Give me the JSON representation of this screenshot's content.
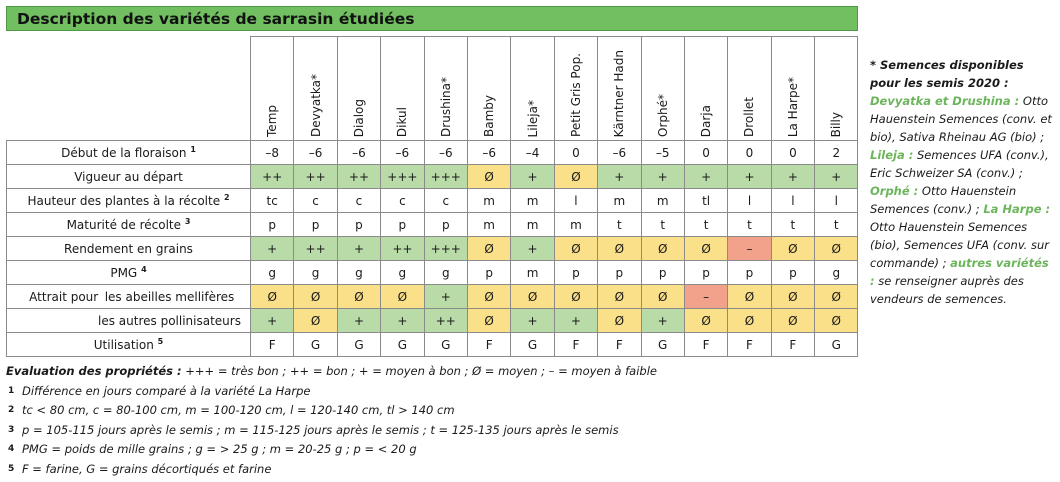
{
  "title": "Description des variétés de sarrasin étudiées",
  "varieties": [
    "Temp",
    "Devyatka*",
    "Dialog",
    "Dikul",
    "Drushina*",
    "Bamby",
    "Lileja*",
    "Petit Gris Pop.",
    "Kärntner Hadn",
    "Orphé*",
    "Darja",
    "Drollet",
    "La Harpe*",
    "Billy"
  ],
  "rows": [
    {
      "label": "Début de la floraison",
      "sup": "1",
      "values": [
        "–8",
        "–6",
        "–6",
        "–6",
        "–6",
        "–6",
        "–4",
        "0",
        "–6",
        "–5",
        "0",
        "0",
        "0",
        "2"
      ],
      "colors": [
        "",
        "",
        "",
        "",
        "",
        "",
        "",
        "",
        "",
        "",
        "",
        "",
        "",
        ""
      ]
    },
    {
      "label": "Vigueur au départ",
      "sup": "",
      "values": [
        "++",
        "++",
        "++",
        "+++",
        "+++",
        "Ø",
        "+",
        "Ø",
        "+",
        "+",
        "+",
        "+",
        "+",
        "+"
      ],
      "colors": [
        "g",
        "g",
        "g",
        "g",
        "g",
        "y",
        "g",
        "y",
        "g",
        "g",
        "g",
        "g",
        "g",
        "g"
      ]
    },
    {
      "label": "Hauteur des plantes à la récolte",
      "sup": "2",
      "values": [
        "tc",
        "c",
        "c",
        "c",
        "c",
        "m",
        "m",
        "l",
        "m",
        "m",
        "tl",
        "l",
        "l",
        "l"
      ],
      "colors": [
        "",
        "",
        "",
        "",
        "",
        "",
        "",
        "",
        "",
        "",
        "",
        "",
        "",
        ""
      ]
    },
    {
      "label": "Maturité de récolte",
      "sup": "3",
      "values": [
        "p",
        "p",
        "p",
        "p",
        "p",
        "m",
        "m",
        "m",
        "t",
        "t",
        "t",
        "t",
        "t",
        "t"
      ],
      "colors": [
        "",
        "",
        "",
        "",
        "",
        "",
        "",
        "",
        "",
        "",
        "",
        "",
        "",
        ""
      ]
    },
    {
      "label": "Rendement en grains",
      "sup": "",
      "values": [
        "+",
        "++",
        "+",
        "++",
        "+++",
        "Ø",
        "+",
        "Ø",
        "Ø",
        "Ø",
        "Ø",
        "–",
        "Ø",
        "Ø"
      ],
      "colors": [
        "g",
        "g",
        "g",
        "g",
        "g",
        "y",
        "g",
        "y",
        "y",
        "y",
        "y",
        "r",
        "y",
        "y"
      ]
    },
    {
      "label": "PMG",
      "sup": "4",
      "values": [
        "g",
        "g",
        "g",
        "g",
        "g",
        "p",
        "m",
        "p",
        "p",
        "p",
        "p",
        "p",
        "p",
        "g"
      ],
      "colors": [
        "",
        "",
        "",
        "",
        "",
        "",
        "",
        "",
        "",
        "",
        "",
        "",
        "",
        ""
      ]
    }
  ],
  "attrait": {
    "label": "Attrait pour",
    "rows": [
      {
        "label": "les abeilles mellifères",
        "values": [
          "Ø",
          "Ø",
          "Ø",
          "Ø",
          "+",
          "Ø",
          "Ø",
          "Ø",
          "Ø",
          "Ø",
          "–",
          "Ø",
          "Ø",
          "Ø"
        ],
        "colors": [
          "y",
          "y",
          "y",
          "y",
          "g",
          "y",
          "y",
          "y",
          "y",
          "y",
          "r",
          "y",
          "y",
          "y"
        ]
      },
      {
        "label": "les autres pollinisateurs",
        "values": [
          "+",
          "Ø",
          "+",
          "+",
          "++",
          "Ø",
          "+",
          "+",
          "Ø",
          "+",
          "Ø",
          "Ø",
          "Ø",
          "Ø"
        ],
        "colors": [
          "g",
          "y",
          "g",
          "g",
          "g",
          "y",
          "g",
          "g",
          "y",
          "g",
          "y",
          "y",
          "y",
          "y"
        ]
      }
    ]
  },
  "utilisation": {
    "label": "Utilisation",
    "sup": "5",
    "values": [
      "F",
      "G",
      "G",
      "G",
      "G",
      "F",
      "G",
      "F",
      "F",
      "G",
      "F",
      "F",
      "F",
      "G"
    ]
  },
  "legend": {
    "heading": "Evaluation des propriétés :",
    "heading_text": " +++ = très bon ; ++ = bon ; + = moyen à bon ; Ø = moyen ; – = moyen à faible",
    "notes": [
      {
        "num": "1",
        "text": "Différence en jours comparé à la variété La Harpe"
      },
      {
        "num": "2",
        "text": "tc < 80 cm, c = 80-100 cm, m = 100-120 cm, l = 120-140 cm, tl > 140 cm"
      },
      {
        "num": "3",
        "text": "p = 105-115 jours après le semis ; m = 115-125 jours après le semis ; t = 125-135 jours après le semis"
      },
      {
        "num": "4",
        "text": "PMG = poids de mille grains ; g = > 25 g ; m = 20-25 g ; p = < 20 g"
      },
      {
        "num": "5",
        "text": "F = farine, G = grains décortiqués et farine"
      }
    ]
  },
  "sidenote": {
    "lead": "* Semences disponibles pour les semis 2020 :",
    "parts": [
      {
        "hl": "Devyatka et Drushina :",
        "text": " Otto Hauenstein Semences (conv. et bio), Sativa Rheinau AG (bio) ; "
      },
      {
        "hl": "Lileja :",
        "text": " Semences UFA (conv.), Eric Schweizer SA (conv.) ; "
      },
      {
        "hl": "Orphé :",
        "text": " Otto Hauenstein Semences (conv.) ; "
      },
      {
        "hl": "La Harpe :",
        "text": " Otto Hauenstein Semences (bio), Semences UFA (conv. sur commande) ; "
      },
      {
        "hl": "autres variétés :",
        "text": " se renseigner auprès des vendeurs de semences."
      }
    ]
  },
  "colors": {
    "green": "#b9dba8",
    "yellow": "#fbe08a",
    "red": "#f2a28a",
    "title_bg": "#72bf62",
    "note_green": "#6cb55c"
  }
}
